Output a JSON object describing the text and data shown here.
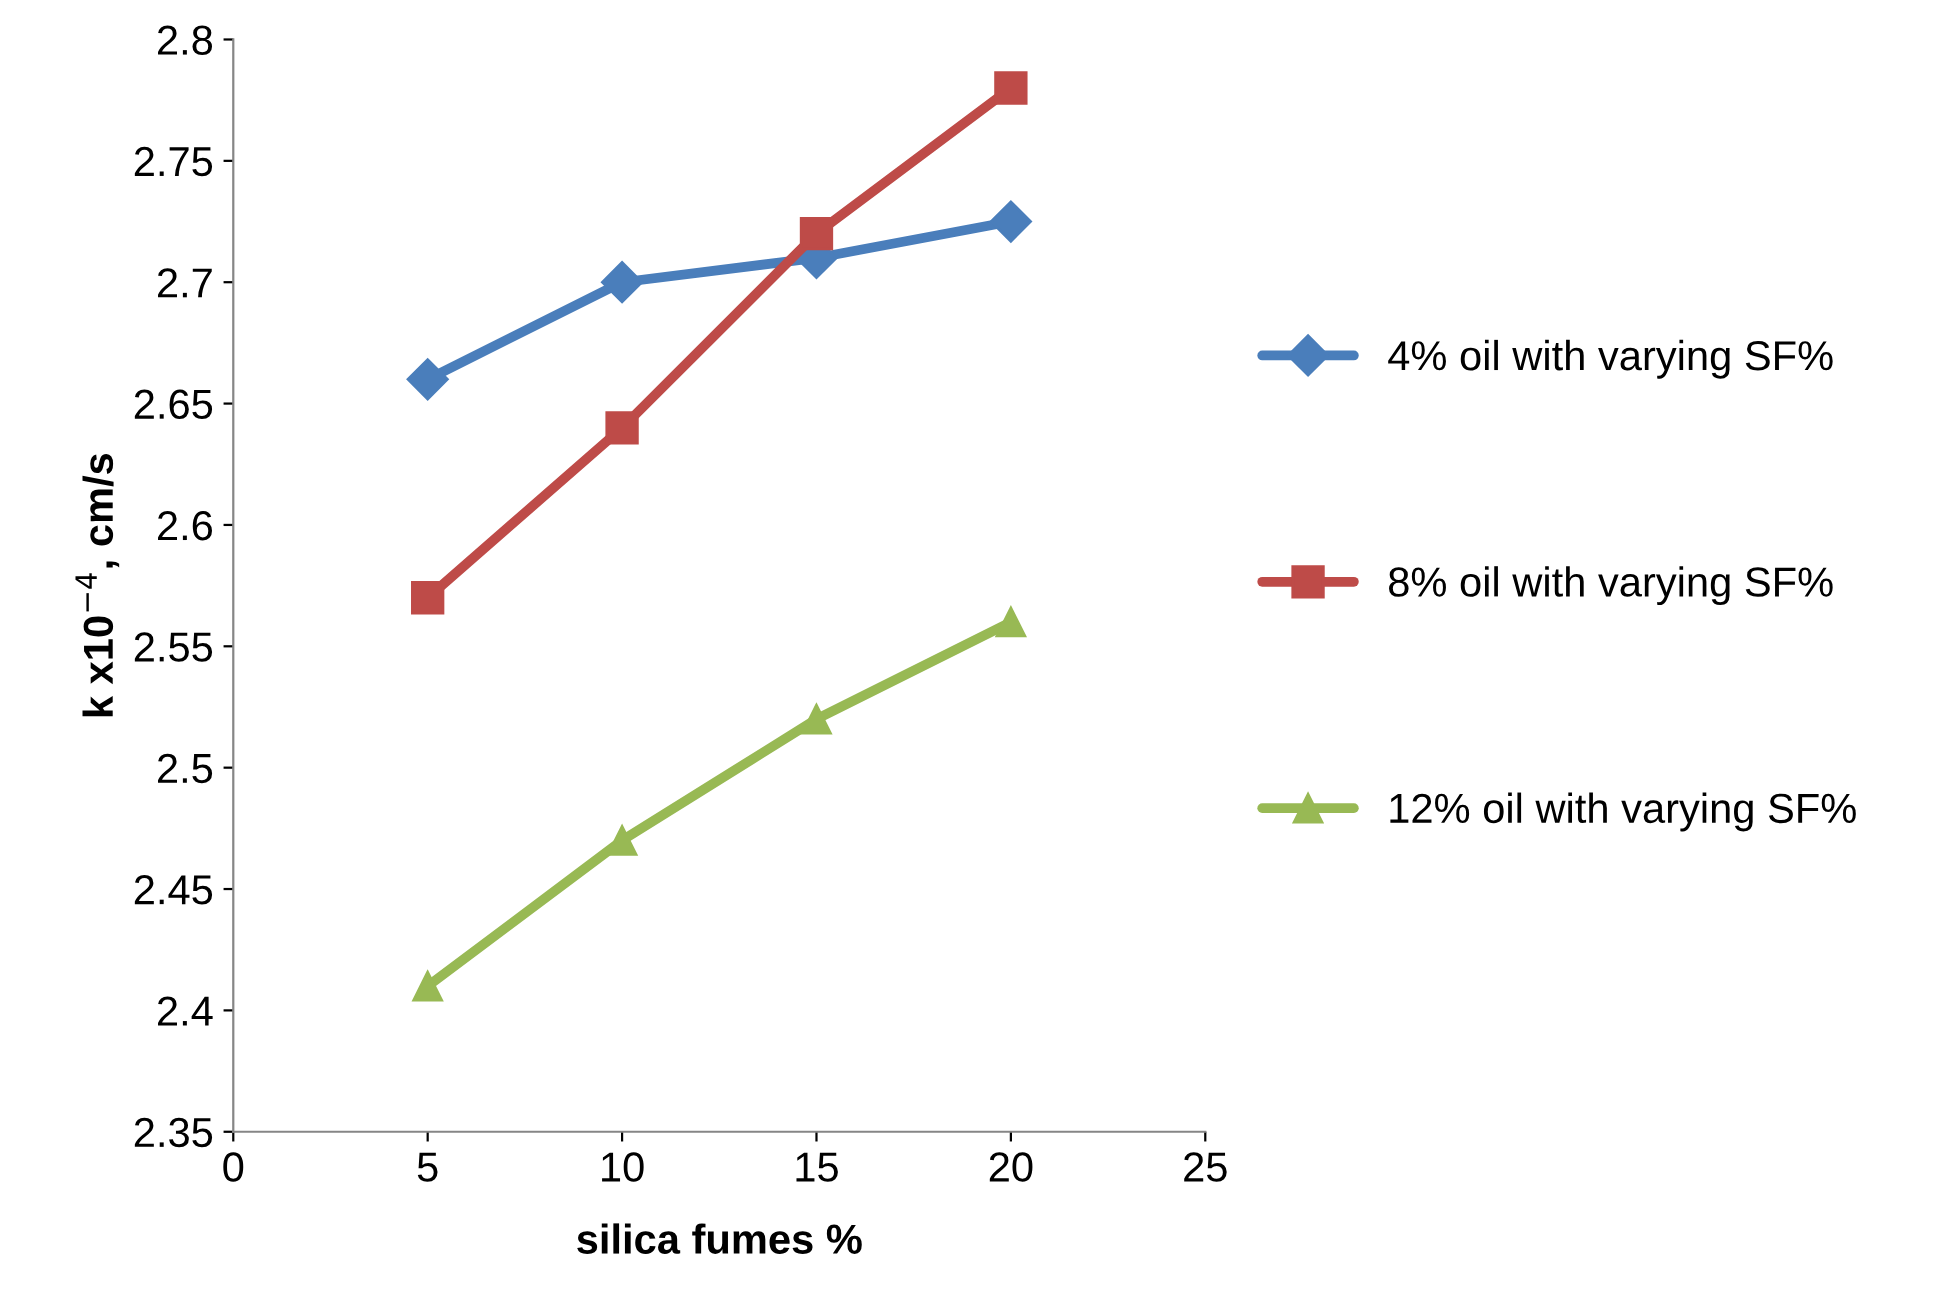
{
  "chart_data": {
    "type": "line",
    "xlabel": "silica fumes %",
    "ylabel": "k x10$^{−4}$, cm/s",
    "x": [
      5,
      10,
      15,
      20
    ],
    "series": [
      {
        "name": "4% oil with varying SF%",
        "color": "#4a7ebb",
        "marker": "diamond",
        "values": [
          2.66,
          2.7,
          2.71,
          2.725
        ]
      },
      {
        "name": "8% oil with varying SF%",
        "color": "#be4b48",
        "marker": "square",
        "values": [
          2.57,
          2.64,
          2.72,
          2.78
        ]
      },
      {
        "name": "12% oil with varying SF%",
        "color": "#98b954",
        "marker": "triangle",
        "values": [
          2.41,
          2.47,
          2.52,
          2.56
        ]
      }
    ],
    "xlim": [
      0,
      25
    ],
    "xticks": [
      0,
      5,
      10,
      15,
      20,
      25
    ],
    "ylim": [
      2.35,
      2.8
    ],
    "yticks": [
      2.35,
      2.4,
      2.45,
      2.5,
      2.55,
      2.6,
      2.65,
      2.7,
      2.75,
      2.8
    ],
    "grid": false,
    "legend": "right",
    "line_style": "solid"
  }
}
